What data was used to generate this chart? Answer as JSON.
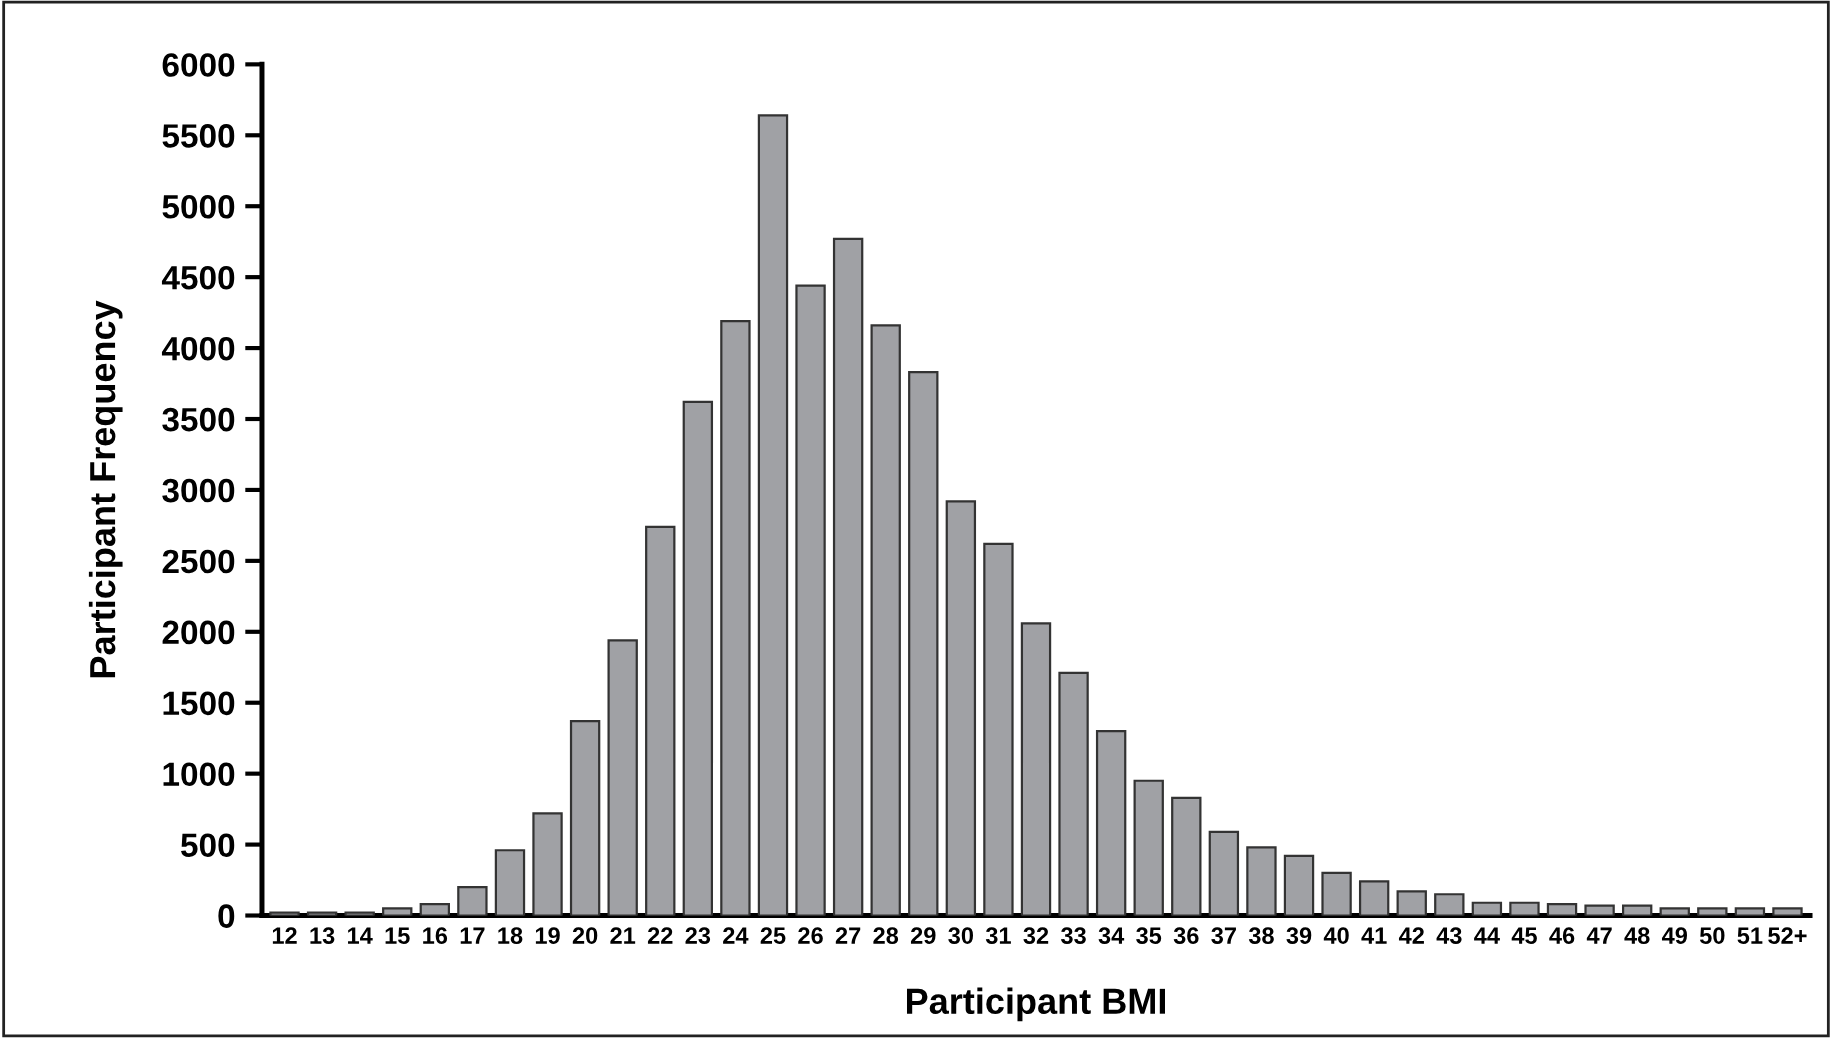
{
  "chart_data": {
    "type": "bar",
    "xlabel": "Participant BMI",
    "ylabel": "Participant Frequency",
    "categories": [
      "12",
      "13",
      "14",
      "15",
      "16",
      "17",
      "18",
      "19",
      "20",
      "21",
      "22",
      "23",
      "24",
      "25",
      "26",
      "27",
      "28",
      "29",
      "30",
      "31",
      "32",
      "33",
      "34",
      "35",
      "36",
      "37",
      "38",
      "39",
      "40",
      "41",
      "42",
      "43",
      "44",
      "45",
      "46",
      "47",
      "48",
      "49",
      "50",
      "51",
      "52+"
    ],
    "values": [
      20,
      20,
      20,
      50,
      80,
      200,
      460,
      720,
      1370,
      1940,
      2740,
      3620,
      4190,
      5640,
      4440,
      4770,
      4160,
      3830,
      2920,
      2620,
      2060,
      1710,
      1300,
      950,
      830,
      590,
      480,
      420,
      300,
      240,
      170,
      150,
      90,
      90,
      80,
      70,
      70,
      50,
      50,
      50,
      50
    ],
    "color": "#a0a1a5",
    "ylim": [
      0,
      6000
    ],
    "yticks": [
      0,
      500,
      1000,
      1500,
      2000,
      2500,
      3000,
      3500,
      4000,
      4500,
      5000,
      5500,
      6000
    ],
    "grid": false,
    "legend": false
  }
}
